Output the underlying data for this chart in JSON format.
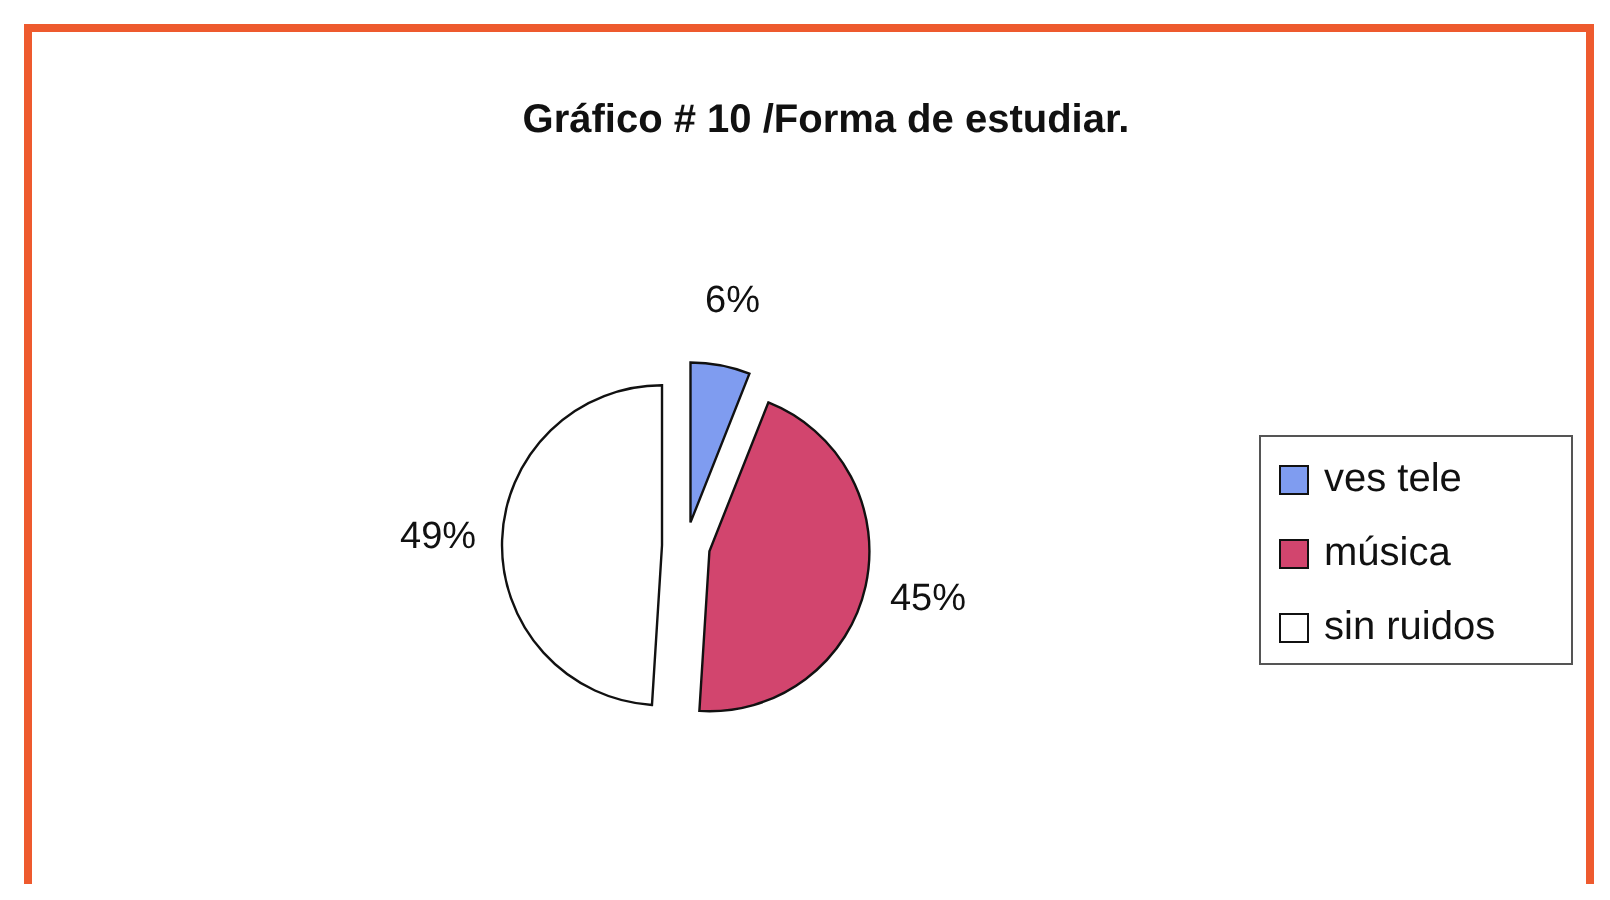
{
  "chart_data": {
    "type": "pie",
    "title": "Gráfico # 10 /Forma de estudiar.",
    "categories": [
      "ves tele",
      "música",
      "sin ruidos"
    ],
    "values": [
      6,
      45,
      49
    ],
    "colors": [
      "#7f9cf0",
      "#d2456e",
      "#ffffff"
    ],
    "value_labels": [
      "6%",
      "45%",
      "49%"
    ],
    "legend": "right"
  }
}
